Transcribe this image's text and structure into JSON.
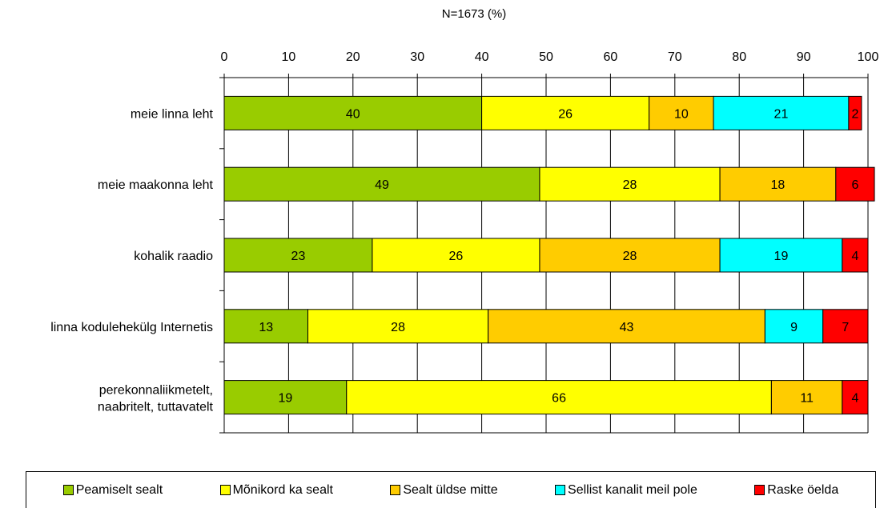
{
  "chart_data": {
    "type": "bar",
    "orientation": "horizontal",
    "stacked": true,
    "title": "",
    "subtitle": "N=1673 (%)",
    "xlabel": "",
    "ylabel": "",
    "xlim": [
      0,
      100
    ],
    "x_ticks": [
      "0",
      "10",
      "20",
      "30",
      "40",
      "50",
      "60",
      "70",
      "80",
      "90",
      "100"
    ],
    "grid": true,
    "legend_position": "bottom",
    "categories": [
      "meie linna leht",
      "meie maakonna leht",
      "kohalik raadio",
      "linna kodulehekülg Internetis",
      "perekonnaliikmetelt, naabritelt, tuttavatelt"
    ],
    "series": [
      {
        "name": "Peamiselt sealt",
        "color": "#99cc00",
        "values": [
          40,
          49,
          23,
          13,
          19
        ]
      },
      {
        "name": "Mõnikord ka sealt",
        "color": "#ffff00",
        "values": [
          26,
          28,
          26,
          28,
          66
        ]
      },
      {
        "name": "Sealt üldse mitte",
        "color": "#ffcc00",
        "values": [
          10,
          18,
          28,
          43,
          11
        ]
      },
      {
        "name": "Sellist kanalit meil pole",
        "color": "#00ffff",
        "values": [
          21,
          0,
          19,
          9,
          0
        ]
      },
      {
        "name": "Raske öelda",
        "color": "#ff0000",
        "values": [
          2,
          6,
          4,
          7,
          4
        ]
      }
    ]
  }
}
